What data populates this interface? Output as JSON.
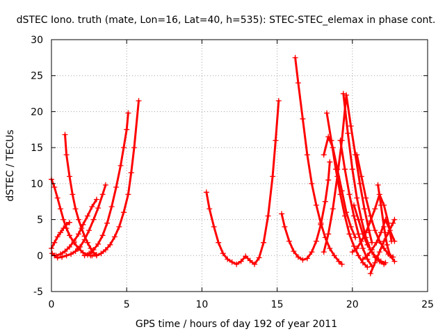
{
  "chart_data": {
    "type": "scatter",
    "title": "dSTEC Iono. truth (mate, Lon=16, Lat=40, h=535): STEC-STEC_elemax in phase cont.",
    "xlabel": "GPS time / hours of day 192 of year 2011",
    "ylabel": "dSTEC  / TECUs",
    "xlim": [
      0,
      25
    ],
    "ylim": [
      -5,
      30
    ],
    "xticks": [
      0,
      5,
      10,
      15,
      20,
      25
    ],
    "yticks": [
      -5,
      0,
      5,
      10,
      15,
      20,
      25,
      30
    ],
    "xtick_labels": [
      "0",
      "5",
      "10",
      "15",
      "20",
      "25"
    ],
    "ytick_labels": [
      "-5",
      "0",
      "5",
      "10",
      "15",
      "20",
      "25",
      "30"
    ],
    "grid": true,
    "legend": "none",
    "marker": "plus",
    "color": "#ff0000",
    "series": [
      {
        "x": [
          0.0,
          0.2,
          0.4,
          0.6,
          0.8,
          1.0,
          1.2,
          1.5,
          1.8,
          2.1,
          2.4,
          2.6
        ],
        "y": [
          10.6,
          9.5,
          8.0,
          6.5,
          5.0,
          3.8,
          2.8,
          1.8,
          1.0,
          0.4,
          0.1,
          0.0
        ]
      },
      {
        "x": [
          0.05,
          0.2,
          0.4,
          0.7,
          1.0,
          1.3,
          1.6,
          1.9,
          2.2,
          2.5,
          2.8,
          3.1,
          3.4,
          3.6
        ],
        "y": [
          0.3,
          0.0,
          -0.3,
          -0.2,
          0.0,
          0.2,
          0.6,
          1.2,
          2.2,
          3.5,
          5.0,
          6.6,
          8.5,
          9.8
        ]
      },
      {
        "x": [
          0.0,
          0.2,
          0.4,
          0.6,
          0.8,
          1.0,
          1.2
        ],
        "y": [
          1.0,
          1.8,
          2.6,
          3.2,
          3.8,
          4.3,
          4.6
        ]
      },
      {
        "x": [
          0.9,
          1.0,
          1.2,
          1.4,
          1.6,
          1.8,
          2.0,
          2.2,
          2.4,
          2.6,
          2.8,
          3.0
        ],
        "y": [
          16.8,
          14.0,
          11.0,
          8.5,
          6.5,
          5.0,
          3.8,
          2.7,
          1.8,
          1.0,
          0.4,
          0.1
        ]
      },
      {
        "x": [
          0.3,
          0.6,
          0.9,
          1.2,
          1.5,
          1.8,
          2.1,
          2.4,
          2.7,
          3.0
        ],
        "y": [
          0.0,
          0.2,
          0.6,
          1.2,
          2.0,
          3.0,
          4.3,
          5.5,
          6.8,
          7.8
        ]
      },
      {
        "x": [
          2.7,
          3.0,
          3.3,
          3.6,
          3.9,
          4.2,
          4.5,
          4.8,
          5.1,
          5.3,
          5.5,
          5.8
        ],
        "y": [
          0.0,
          0.0,
          0.3,
          0.8,
          1.5,
          2.6,
          4.0,
          6.0,
          8.5,
          11.5,
          15.0,
          21.5
        ]
      },
      {
        "x": [
          2.2,
          2.5,
          2.8,
          3.1,
          3.4,
          3.7,
          4.0,
          4.3,
          4.6,
          4.8,
          5.0,
          5.1
        ],
        "y": [
          0.0,
          0.3,
          0.8,
          1.6,
          2.8,
          4.5,
          6.8,
          9.5,
          12.5,
          15.0,
          17.5,
          19.8
        ]
      },
      {
        "x": [
          10.3,
          10.5,
          10.8,
          11.1,
          11.4,
          11.7,
          12.0,
          12.3,
          12.6,
          12.9,
          13.2,
          13.5,
          13.8,
          14.1,
          14.4,
          14.7,
          14.9,
          15.1
        ],
        "y": [
          8.8,
          6.5,
          4.0,
          1.8,
          0.3,
          -0.5,
          -0.9,
          -1.2,
          -0.8,
          -0.1,
          -0.7,
          -1.2,
          -0.3,
          1.8,
          5.5,
          11.0,
          16.0,
          21.5
        ]
      },
      {
        "x": [
          15.3,
          15.5,
          15.8,
          16.1,
          16.4,
          16.7,
          17.0,
          17.3,
          17.6,
          17.9,
          18.2,
          18.4,
          18.5
        ],
        "y": [
          5.8,
          4.0,
          2.0,
          0.6,
          -0.2,
          -0.6,
          -0.4,
          0.5,
          2.0,
          4.3,
          7.5,
          10.5,
          13.0
        ]
      },
      {
        "x": [
          16.2,
          16.4,
          16.7,
          17.0,
          17.3,
          17.6,
          17.9,
          18.2,
          18.5,
          18.8,
          19.1,
          19.3
        ],
        "y": [
          27.5,
          24.0,
          19.0,
          14.0,
          10.0,
          7.0,
          4.5,
          2.5,
          1.0,
          0.0,
          -0.8,
          -1.2
        ]
      },
      {
        "x": [
          18.1,
          18.4,
          18.7,
          19.0,
          19.3,
          19.6,
          19.9,
          20.2,
          20.5,
          20.8,
          21.1,
          21.3
        ],
        "y": [
          0.5,
          3.0,
          6.5,
          11.0,
          16.0,
          22.3,
          18.0,
          14.0,
          10.0,
          6.5,
          3.5,
          1.8
        ]
      },
      {
        "x": [
          18.1,
          18.4,
          18.7,
          19.0,
          19.3,
          19.6,
          19.9,
          20.2
        ],
        "y": [
          14.0,
          16.5,
          15.0,
          12.0,
          9.0,
          6.0,
          4.0,
          2.5
        ]
      },
      {
        "x": [
          18.3,
          18.6,
          18.9,
          19.2,
          19.5,
          19.8,
          20.1,
          20.4,
          20.7,
          21.0
        ],
        "y": [
          19.8,
          16.0,
          12.0,
          8.5,
          5.5,
          3.0,
          1.3,
          0.0,
          -1.0,
          -1.6
        ]
      },
      {
        "x": [
          19.2,
          19.5,
          19.8,
          20.1,
          20.4,
          20.7,
          21.0,
          21.3
        ],
        "y": [
          16.0,
          12.0,
          8.5,
          5.5,
          3.0,
          1.0,
          -0.5,
          -1.5
        ]
      },
      {
        "x": [
          19.4,
          19.7,
          20.0,
          20.3,
          20.6,
          20.9,
          21.2,
          21.5,
          21.8,
          22.1
        ],
        "y": [
          22.5,
          17.0,
          12.0,
          8.0,
          5.0,
          2.5,
          0.8,
          -0.2,
          -0.8,
          -1.2
        ]
      },
      {
        "x": [
          20.3,
          20.6,
          20.9,
          21.2,
          21.5,
          21.8,
          22.1,
          22.4,
          22.7
        ],
        "y": [
          14.0,
          11.0,
          8.0,
          5.5,
          3.5,
          2.0,
          1.0,
          0.2,
          -0.2
        ]
      },
      {
        "x": [
          20.0,
          20.3,
          20.6,
          20.9,
          21.2,
          21.5,
          21.8,
          22.1,
          22.4,
          22.6
        ],
        "y": [
          0.5,
          1.0,
          2.0,
          3.2,
          4.8,
          6.5,
          8.5,
          7.0,
          4.5,
          2.0
        ]
      },
      {
        "x": [
          21.7,
          21.9,
          22.1,
          22.3,
          22.5,
          22.8
        ],
        "y": [
          9.8,
          7.0,
          4.0,
          1.5,
          0.0,
          -0.8
        ]
      },
      {
        "x": [
          20.7,
          21.0,
          21.3,
          21.6,
          21.9,
          22.2,
          22.5,
          22.8
        ],
        "y": [
          -0.5,
          0.0,
          0.8,
          1.8,
          3.2,
          5.0,
          3.5,
          2.0
        ]
      },
      {
        "x": [
          21.2,
          21.5,
          21.8,
          22.1,
          22.4,
          22.7,
          22.8
        ],
        "y": [
          -2.5,
          -1.0,
          0.5,
          2.0,
          3.2,
          4.5,
          5.0
        ]
      },
      {
        "x": [
          20.1,
          20.4,
          20.7,
          21.0,
          21.3,
          21.6,
          21.9,
          22.2
        ],
        "y": [
          7.0,
          5.0,
          3.0,
          1.5,
          0.5,
          -0.3,
          -0.8,
          -1.0
        ]
      }
    ]
  }
}
